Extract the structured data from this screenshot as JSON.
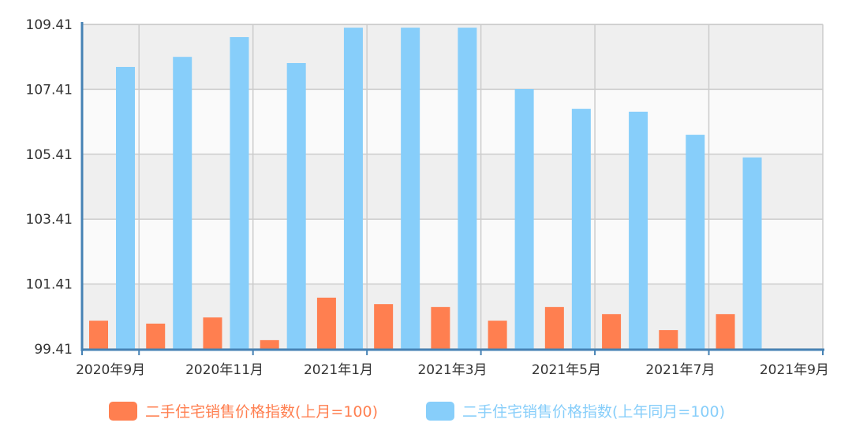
{
  "chart_data": {
    "type": "bar",
    "title": "",
    "xlabel": "",
    "ylabel": "",
    "ylim": [
      99.41,
      109.41
    ],
    "yticks": [
      "99.41",
      "101.41",
      "103.41",
      "105.41",
      "107.41",
      "109.41"
    ],
    "xtick_labels": [
      "2020年9月",
      "2020年11月",
      "2021年1月",
      "2021年3月",
      "2021年5月",
      "2021年7月",
      "2021年9月"
    ],
    "categories": [
      "2020-09",
      "2020-10",
      "2020-11",
      "2020-12",
      "2021-01",
      "2021-02",
      "2021-03",
      "2021-04",
      "2021-05",
      "2021-06",
      "2021-07",
      "2021-08"
    ],
    "series": [
      {
        "name": "二手住宅销售价格指数(上月=100)",
        "color": "#ff7f50",
        "values": [
          100.28,
          100.19,
          100.38,
          99.68,
          100.99,
          100.79,
          100.7,
          100.28,
          100.7,
          100.48,
          99.99,
          100.48
        ]
      },
      {
        "name": "二手住宅销售价格指数(上年同月=100)",
        "color": "#87cefa",
        "values": [
          108.1,
          108.41,
          109.02,
          108.22,
          109.31,
          109.31,
          109.31,
          107.42,
          106.81,
          106.72,
          106.01,
          105.31
        ]
      }
    ],
    "grid": true,
    "legend_position": "bottom"
  }
}
